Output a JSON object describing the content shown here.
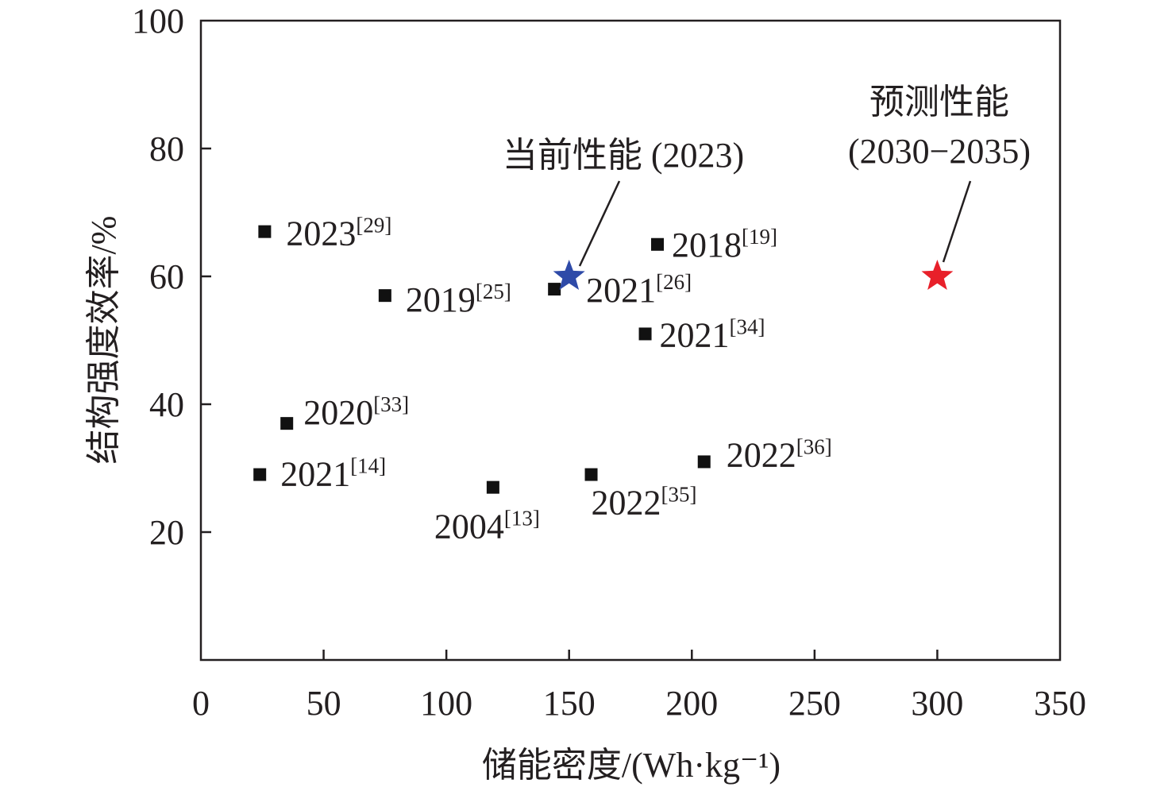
{
  "chart_data": {
    "type": "scatter",
    "xlabel": "储能密度/(Wh·kg⁻¹)",
    "ylabel": "结构强度效率/%",
    "xlim": [
      0,
      350
    ],
    "ylim": [
      0,
      100
    ],
    "xticks": [
      0,
      50,
      100,
      150,
      200,
      250,
      300,
      350
    ],
    "yticks": [
      20,
      40,
      60,
      80,
      100
    ],
    "grid": false,
    "points": [
      {
        "x": 26,
        "y": 67,
        "year": "2023",
        "ref": "[29]"
      },
      {
        "x": 75,
        "y": 57,
        "year": "2019",
        "ref": "[25]"
      },
      {
        "x": 144,
        "y": 58,
        "year": "2021",
        "ref": "[26]"
      },
      {
        "x": 186,
        "y": 65,
        "year": "2018",
        "ref": "[19]"
      },
      {
        "x": 181,
        "y": 51,
        "year": "2021",
        "ref": "[34]"
      },
      {
        "x": 35,
        "y": 37,
        "year": "2020",
        "ref": "[33]"
      },
      {
        "x": 24,
        "y": 29,
        "year": "2021",
        "ref": "[14]"
      },
      {
        "x": 119,
        "y": 27,
        "year": "2004",
        "ref": "[13]"
      },
      {
        "x": 159,
        "y": 29,
        "year": "2022",
        "ref": "[35]"
      },
      {
        "x": 205,
        "y": 31,
        "year": "2022",
        "ref": "[36]"
      }
    ],
    "highlights": [
      {
        "x": 150,
        "y": 60,
        "label": "当前性能 (2023)",
        "color": "#2e4aa8",
        "marker": "star"
      },
      {
        "x": 300,
        "y": 60,
        "label_line1": "预测性能",
        "label_line2": "(2030−2035)",
        "color": "#e8202a",
        "marker": "star"
      }
    ],
    "marker_color": "#111111"
  }
}
